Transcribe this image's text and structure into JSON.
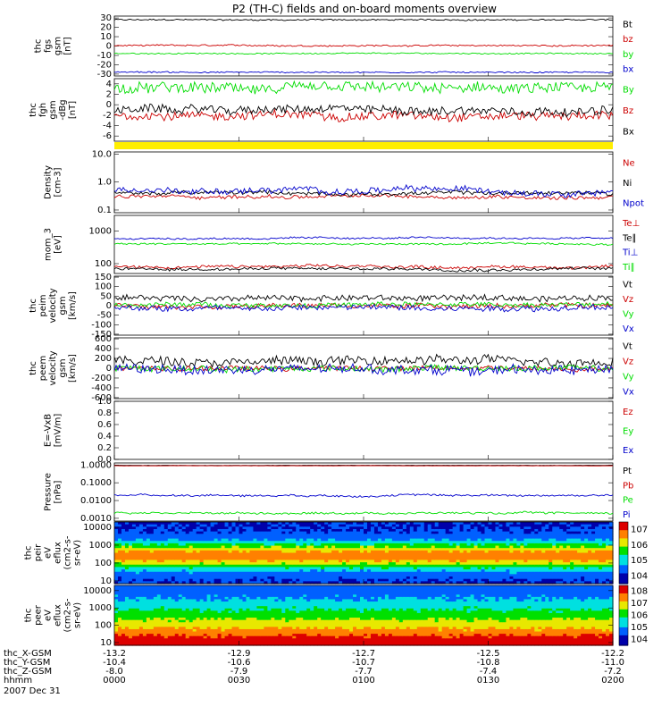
{
  "title": "P2 (TH-C) fields and on-board moments overview",
  "bottom_axis": {
    "rows": [
      {
        "label": "thc_X-GSM",
        "values": [
          "-13.2",
          "-12.9",
          "-12.7",
          "-12.5",
          "-12.2"
        ]
      },
      {
        "label": "thc_Y-GSM",
        "values": [
          "-10.4",
          "-10.6",
          "-10.7",
          "-10.8",
          "-11.0"
        ]
      },
      {
        "label": "thc_Z-GSM",
        "values": [
          "-8.0",
          "-7.9",
          "-7.7",
          "-7.4",
          "-7.2"
        ]
      },
      {
        "label": "hhmm",
        "values": [
          "0000",
          "0030",
          "0100",
          "0130",
          "0200"
        ]
      }
    ],
    "date": "2007 Dec 31"
  },
  "chart_data": [
    {
      "type": "line",
      "ylabel": [
        "thc",
        "fgs",
        "gsm",
        "[nT]"
      ],
      "ylim": [
        -32,
        32
      ],
      "yticks": [
        "30",
        "20",
        "10",
        "0",
        "-10",
        "-20",
        "-30"
      ],
      "ytick_values": [
        30,
        20,
        10,
        0,
        -10,
        -20,
        -30
      ],
      "series": [
        {
          "name": "Bt",
          "color": "#000000",
          "base": 28,
          "noise": 0.7
        },
        {
          "name": "bz",
          "color": "#cc0000",
          "base": 0.5,
          "noise": 0.8
        },
        {
          "name": "by",
          "color": "#00dd00",
          "base": -8,
          "noise": 0.6
        },
        {
          "name": "bx",
          "color": "#0000cc",
          "base": -28,
          "noise": 0.7
        }
      ]
    },
    {
      "type": "line",
      "ylabel": [
        "thc",
        "fgh",
        "gsm",
        "-dBg",
        "[nT]"
      ],
      "ylim": [
        -7,
        5
      ],
      "yticks": [
        "4",
        "2",
        "0",
        "-2",
        "-4",
        "-6"
      ],
      "ytick_values": [
        4,
        2,
        0,
        -2,
        -4,
        -6
      ],
      "series": [
        {
          "name": "By",
          "color": "#00dd00",
          "base": 3,
          "noise": 1.0
        },
        {
          "name": "Bz",
          "color": "#cc0000",
          "base": -2,
          "noise": 0.8
        },
        {
          "name": "Bx",
          "color": "#000000",
          "base": -1,
          "noise": 0.8
        }
      ]
    },
    {
      "type": "bar",
      "ylabel": [],
      "note": "yellow data-quality bar",
      "color": "#ffee00"
    },
    {
      "type": "line",
      "scale": "log",
      "ylabel": [
        "Density",
        "[cm-3]"
      ],
      "ylim": [
        0.08,
        12
      ],
      "yticks": [
        "10.0",
        "1.0",
        "0.1"
      ],
      "ytick_values": [
        10,
        1,
        0.1
      ],
      "series": [
        {
          "name": "Ne",
          "color": "#cc0000",
          "base": 0.3,
          "noise": 0.12
        },
        {
          "name": "Ni",
          "color": "#000000",
          "base": 0.4,
          "noise": 0.12
        },
        {
          "name": "Npot",
          "color": "#0000cc",
          "base": 0.5,
          "noise": 0.2
        }
      ]
    },
    {
      "type": "line",
      "scale": "log",
      "ylabel": [
        "mom_3",
        "[eV]"
      ],
      "ylim": [
        50,
        3000
      ],
      "yticks": [
        "1000",
        "100"
      ],
      "ytick_values": [
        1000,
        100
      ],
      "series": [
        {
          "name": "Te⊥",
          "color": "#cc0000",
          "base": 80,
          "noise": 0.08
        },
        {
          "name": "Te∥",
          "color": "#000000",
          "base": 70,
          "noise": 0.08
        },
        {
          "name": "Ti⊥",
          "color": "#0000cc",
          "base": 600,
          "noise": 0.05
        },
        {
          "name": "Ti∥",
          "color": "#00dd00",
          "base": 400,
          "noise": 0.05
        }
      ]
    },
    {
      "type": "line",
      "ylabel": [
        "thc",
        "peim",
        "velocity",
        "gsm",
        "[km/s]"
      ],
      "ylim": [
        -155,
        155
      ],
      "yticks": [
        "150",
        "100",
        "50",
        "0",
        "-50",
        "-100",
        "-150"
      ],
      "ytick_values": [
        150,
        100,
        50,
        0,
        -50,
        -100,
        -150
      ],
      "series": [
        {
          "name": "Vt",
          "color": "#000000",
          "base": 40,
          "noise": 15
        },
        {
          "name": "Vz",
          "color": "#cc0000",
          "base": 0,
          "noise": 12
        },
        {
          "name": "Vy",
          "color": "#00dd00",
          "base": 5,
          "noise": 12
        },
        {
          "name": "Vx",
          "color": "#0000cc",
          "base": -10,
          "noise": 15
        }
      ]
    },
    {
      "type": "line",
      "ylabel": [
        "thc",
        "peem",
        "velocity",
        "gsm",
        "[km/s]"
      ],
      "ylim": [
        -620,
        620
      ],
      "yticks": [
        "600",
        "400",
        "200",
        "0",
        "-200",
        "-400",
        "-600"
      ],
      "ytick_values": [
        600,
        400,
        200,
        0,
        -200,
        -400,
        -600
      ],
      "series": [
        {
          "name": "Vt",
          "color": "#000000",
          "base": 150,
          "noise": 90
        },
        {
          "name": "Vz",
          "color": "#cc0000",
          "base": 0,
          "noise": 50
        },
        {
          "name": "Vy",
          "color": "#00dd00",
          "base": 0,
          "noise": 60
        },
        {
          "name": "Vx",
          "color": "#0000cc",
          "base": -30,
          "noise": 90
        }
      ]
    },
    {
      "type": "line",
      "ylabel": [
        "E=-VxB",
        "[mV/m]"
      ],
      "ylim": [
        0,
        1
      ],
      "yticks": [
        "1.0",
        "0.8",
        "0.6",
        "0.4",
        "0.2",
        "0.0"
      ],
      "ytick_values": [
        1,
        0.8,
        0.6,
        0.4,
        0.2,
        0
      ],
      "series": [
        {
          "name": "Ez",
          "color": "#cc0000"
        },
        {
          "name": "Ey",
          "color": "#00dd00"
        },
        {
          "name": "Ex",
          "color": "#0000cc"
        }
      ]
    },
    {
      "type": "line",
      "scale": "log",
      "ylabel": [
        "Pressure",
        "[nPa]"
      ],
      "ylim": [
        0.0007,
        1.3
      ],
      "yticks": [
        "1.0000",
        "0.1000",
        "0.0100",
        "0.0010"
      ],
      "ytick_values": [
        1,
        0.1,
        0.01,
        0.001
      ],
      "series": [
        {
          "name": "Pt",
          "color": "#000000",
          "base": 0.95,
          "noise": 0.01
        },
        {
          "name": "Pb",
          "color": "#cc0000",
          "base": 0.9,
          "noise": 0.01
        },
        {
          "name": "Pe",
          "color": "#00dd00",
          "base": 0.002,
          "noise": 0.1
        },
        {
          "name": "Pi",
          "color": "#0000cc",
          "base": 0.02,
          "noise": 0.1
        }
      ]
    },
    {
      "type": "heatmap",
      "scale": "log",
      "ylabel": [
        "thc",
        "peir",
        "eV",
        "eflux",
        "(cm2-s-",
        "sr-eV)"
      ],
      "ylim": [
        7,
        20000
      ],
      "yticks": [
        "10000",
        "1000",
        "100",
        "10"
      ],
      "ytick_values": [
        10000,
        1000,
        100,
        10
      ],
      "colorbar_ticks": [
        "7",
        "6",
        "5",
        "4"
      ],
      "colorbar_range": [
        3.5,
        7.5
      ]
    },
    {
      "type": "heatmap",
      "scale": "log",
      "ylabel": [
        "thc",
        "peer",
        "eV",
        "eflux",
        "(cm2-s-",
        "sr-eV)"
      ],
      "ylim": [
        7,
        20000
      ],
      "yticks": [
        "10000",
        "1000",
        "100",
        "10"
      ],
      "ytick_values": [
        10000,
        1000,
        100,
        10
      ],
      "colorbar_ticks": [
        "8",
        "7",
        "6",
        "5",
        "4"
      ],
      "colorbar_range": [
        3.5,
        8.5
      ]
    }
  ]
}
